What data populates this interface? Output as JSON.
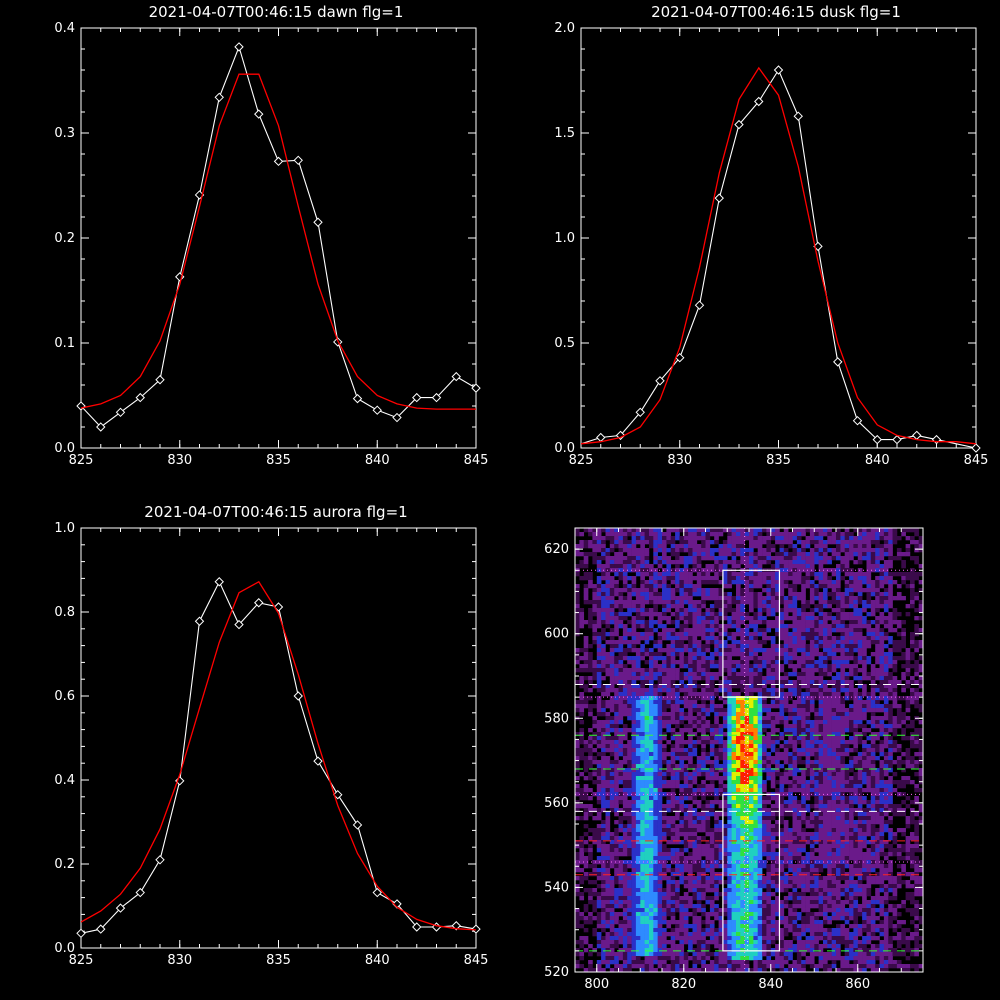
{
  "chart_data": [
    {
      "type": "line",
      "title": "2021-04-07T00:46:15 dawn flg=1",
      "xlim": [
        825,
        845
      ],
      "ylim": [
        0,
        0.4
      ],
      "xticks": [
        825,
        830,
        835,
        840,
        845
      ],
      "xtick_labels": [
        "825",
        "830",
        "835",
        "840",
        "845"
      ],
      "yticks": [
        0,
        0.1,
        0.2,
        0.3,
        0.4
      ],
      "ytick_labels": [
        "0.0",
        "0.1",
        "0.2",
        "0.3",
        "0.4"
      ],
      "series": [
        {
          "style": "line+diamonds",
          "color": "#ffffff",
          "x": [
            825,
            826,
            827,
            828,
            829,
            830,
            831,
            832,
            833,
            834,
            835,
            836,
            837,
            838,
            839,
            840,
            841,
            842,
            843,
            844,
            845
          ],
          "y": [
            0.04,
            0.02,
            0.034,
            0.048,
            0.065,
            0.163,
            0.241,
            0.334,
            0.382,
            0.318,
            0.273,
            0.274,
            0.215,
            0.101,
            0.047,
            0.036,
            0.029,
            0.048,
            0.048,
            0.068,
            0.057
          ]
        },
        {
          "style": "line",
          "color": "#ff0000",
          "x": [
            825,
            826,
            827,
            828,
            829,
            830,
            831,
            832,
            833,
            834,
            835,
            836,
            837,
            838,
            839,
            840,
            841,
            842,
            843,
            844,
            845
          ],
          "y": [
            0.038,
            0.042,
            0.05,
            0.068,
            0.102,
            0.156,
            0.23,
            0.307,
            0.356,
            0.356,
            0.307,
            0.23,
            0.156,
            0.102,
            0.068,
            0.05,
            0.042,
            0.038,
            0.037,
            0.037,
            0.037
          ]
        }
      ]
    },
    {
      "type": "line",
      "title": "2021-04-07T00:46:15 dusk flg=1",
      "xlim": [
        825,
        845
      ],
      "ylim": [
        0,
        2.0
      ],
      "xticks": [
        825,
        830,
        835,
        840,
        845
      ],
      "xtick_labels": [
        "825",
        "830",
        "835",
        "840",
        "845"
      ],
      "yticks": [
        0,
        0.5,
        1.0,
        1.5,
        2.0
      ],
      "ytick_labels": [
        "0.0",
        "0.5",
        "1.0",
        "1.5",
        "2.0"
      ],
      "series": [
        {
          "style": "line+diamonds",
          "color": "#ffffff",
          "x": [
            825,
            826,
            827,
            828,
            829,
            830,
            831,
            832,
            833,
            834,
            835,
            836,
            837,
            838,
            839,
            840,
            841,
            842,
            843,
            844,
            845
          ],
          "y": [
            0.02,
            0.05,
            0.06,
            0.17,
            0.32,
            0.43,
            0.68,
            1.19,
            1.54,
            1.65,
            1.8,
            1.58,
            0.96,
            0.41,
            0.13,
            0.04,
            0.04,
            0.06,
            0.04,
            0.02,
            0.0
          ],
          "markers_x": [
            826,
            827,
            828,
            829,
            830,
            831,
            832,
            833,
            834,
            835,
            836,
            837,
            838,
            839,
            840,
            841,
            842,
            843,
            845
          ]
        },
        {
          "style": "line",
          "color": "#ff0000",
          "x": [
            825,
            826,
            827,
            828,
            829,
            830,
            831,
            832,
            833,
            834,
            835,
            836,
            837,
            838,
            839,
            840,
            841,
            842,
            843,
            844,
            845
          ],
          "y": [
            0.02,
            0.03,
            0.05,
            0.1,
            0.23,
            0.48,
            0.86,
            1.31,
            1.66,
            1.81,
            1.68,
            1.34,
            0.89,
            0.5,
            0.24,
            0.11,
            0.06,
            0.04,
            0.03,
            0.03,
            0.02
          ]
        }
      ]
    },
    {
      "type": "line",
      "title": "2021-04-07T00:46:15 aurora flg=1",
      "xlim": [
        825,
        845
      ],
      "ylim": [
        0,
        1.0
      ],
      "xticks": [
        825,
        830,
        835,
        840,
        845
      ],
      "xtick_labels": [
        "825",
        "830",
        "835",
        "840",
        "845"
      ],
      "yticks": [
        0,
        0.2,
        0.4,
        0.6,
        0.8,
        1.0
      ],
      "ytick_labels": [
        "0.0",
        "0.2",
        "0.4",
        "0.6",
        "0.8",
        "1.0"
      ],
      "series": [
        {
          "style": "line+diamonds",
          "color": "#ffffff",
          "x": [
            825,
            826,
            827,
            828,
            829,
            830,
            831,
            832,
            833,
            834,
            835,
            836,
            837,
            838,
            839,
            840,
            841,
            842,
            843,
            844,
            845
          ],
          "y": [
            0.035,
            0.045,
            0.095,
            0.132,
            0.21,
            0.398,
            0.778,
            0.872,
            0.77,
            0.822,
            0.812,
            0.6,
            0.445,
            0.365,
            0.293,
            0.132,
            0.105,
            0.05,
            0.05,
            0.053,
            0.045
          ]
        },
        {
          "style": "line",
          "color": "#ff0000",
          "x": [
            825,
            826,
            827,
            828,
            829,
            830,
            831,
            832,
            833,
            834,
            835,
            836,
            837,
            838,
            839,
            840,
            841,
            842,
            843,
            844,
            845
          ],
          "y": [
            0.062,
            0.088,
            0.128,
            0.19,
            0.283,
            0.413,
            0.571,
            0.728,
            0.846,
            0.872,
            0.797,
            0.651,
            0.487,
            0.339,
            0.225,
            0.147,
            0.097,
            0.068,
            0.053,
            0.046,
            0.043
          ]
        }
      ]
    },
    {
      "type": "heatmap",
      "xlim": [
        795,
        875
      ],
      "ylim": [
        520,
        625
      ],
      "xticks": [
        800,
        820,
        840,
        860
      ],
      "xtick_labels": [
        "800",
        "820",
        "840",
        "860"
      ],
      "yticks": [
        520,
        540,
        560,
        580,
        600,
        620
      ],
      "ytick_labels": [
        "520",
        "540",
        "560",
        "580",
        "600",
        "620"
      ],
      "colormap": [
        "#000000",
        "#3a0a4a",
        "#6a1a8a",
        "#2a30c8",
        "#2e8bff",
        "#20d0c0",
        "#30e040",
        "#e0f000",
        "#ff8000",
        "#ff2000"
      ],
      "bright_columns": [
        {
          "x0": 808,
          "x1": 815,
          "y0": 524,
          "y1": 585,
          "peak": 0.55
        },
        {
          "x0": 830,
          "x1": 838,
          "y0": 523,
          "y1": 585,
          "peak": 1.0
        },
        {
          "x0": 850,
          "x1": 858,
          "y0": 545,
          "y1": 585,
          "peak": 0.25
        }
      ],
      "boxes": [
        {
          "x0": 829,
          "x1": 842,
          "y0": 525,
          "y1": 562
        },
        {
          "x0": 829,
          "x1": 842,
          "y0": 585,
          "y1": 615
        }
      ],
      "vline_x": 834,
      "hlines": [
        {
          "y": 615,
          "color": "#ff66ff",
          "style": "dotted"
        },
        {
          "y": 588,
          "color": "#ffffff",
          "style": "dashed"
        },
        {
          "y": 585,
          "color": "#ff66ff",
          "style": "dotted"
        },
        {
          "y": 576,
          "color": "#33ff33",
          "style": "dashed"
        },
        {
          "y": 568,
          "color": "#33ff33",
          "style": "dashed"
        },
        {
          "y": 562,
          "color": "#ff66ff",
          "style": "dotted"
        },
        {
          "y": 558,
          "color": "#ffffff",
          "style": "dashed"
        },
        {
          "y": 551,
          "color": "#ff2222",
          "style": "dashed"
        },
        {
          "y": 546,
          "color": "#ff66ff",
          "style": "dotted"
        },
        {
          "y": 543,
          "color": "#ff2222",
          "style": "dashed"
        },
        {
          "y": 525,
          "color": "#33ff33",
          "style": "dashed"
        }
      ]
    }
  ]
}
